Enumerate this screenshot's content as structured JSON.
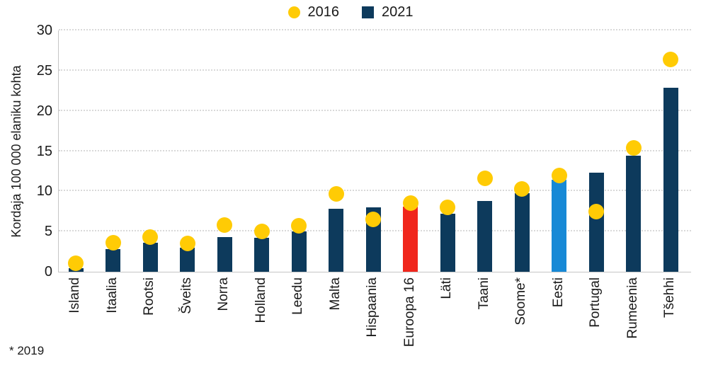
{
  "legend": {
    "items": [
      {
        "label": "2016",
        "marker": "circle",
        "color": "#ffcb05"
      },
      {
        "label": "2021",
        "marker": "square",
        "color": "#0d3a5c"
      }
    ]
  },
  "footnote": "* 2019",
  "colors": {
    "background": "#ffffff",
    "axis": "#c6c6c6",
    "grid": "#d9d9d9",
    "text": "#1a1a1a",
    "bar_default": "#0d3a5c",
    "bar_euroopa16": "#f0261c",
    "bar_eesti": "#1789d6",
    "dot_2016": "#ffcb05"
  },
  "chart_data": {
    "type": "bar",
    "title": "",
    "xlabel": "",
    "ylabel": "Kordaja 100 000 elaniku kohta",
    "ylim": [
      0,
      30
    ],
    "yticks": [
      0,
      5,
      10,
      15,
      20,
      25,
      30
    ],
    "grid": "horizontal-dotted",
    "legend_position": "top-center",
    "footnote": "* 2019",
    "categories": [
      "Island",
      "Itaalia",
      "Rootsi",
      "Šveits",
      "Norra",
      "Holland",
      "Leedu",
      "Malta",
      "Hispaania",
      "Euroopa 16",
      "Läti",
      "Taani",
      "Soome*",
      "Eesti",
      "Portugal",
      "Rumeenia",
      "Tšehhi"
    ],
    "series": [
      {
        "name": "2016",
        "style": "dot",
        "color": "#ffcb05",
        "values": [
          1.1,
          3.6,
          4.3,
          3.5,
          5.8,
          5.0,
          5.7,
          9.7,
          6.5,
          8.5,
          8.0,
          11.6,
          10.3,
          12.0,
          7.5,
          15.4,
          26.4
        ]
      },
      {
        "name": "2021",
        "style": "bar",
        "color": "#0d3a5c",
        "values": [
          0.4,
          2.8,
          3.6,
          3.0,
          4.3,
          4.2,
          5.0,
          7.8,
          8.0,
          8.1,
          7.2,
          8.8,
          9.8,
          11.4,
          12.3,
          14.4,
          22.9
        ],
        "highlight_colors": {
          "Euroopa 16": "#f0261c",
          "Eesti": "#1789d6"
        }
      }
    ]
  }
}
